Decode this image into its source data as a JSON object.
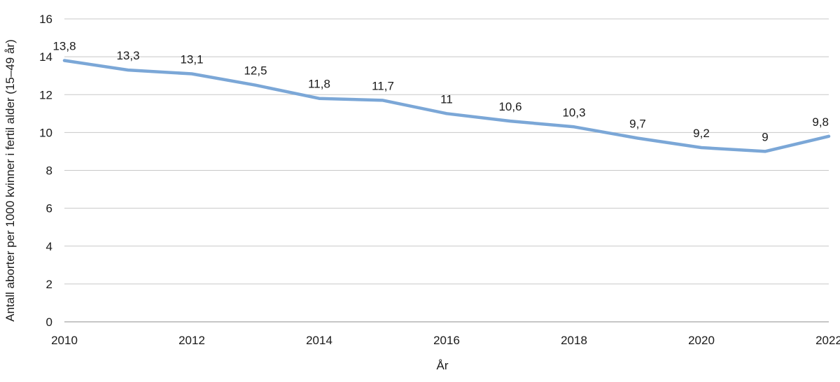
{
  "chart_data": {
    "type": "line",
    "xlabel": "År",
    "ylabel": "Antall aborter per 1000 kvinner i fertil alder (15–49 år)",
    "ylim": [
      0,
      16
    ],
    "yticks": [
      "0",
      "2",
      "4",
      "6",
      "8",
      "10",
      "12",
      "14",
      "16"
    ],
    "xlim": [
      2010,
      2022
    ],
    "xticks": [
      "2010",
      "2012",
      "2014",
      "2016",
      "2018",
      "2020",
      "2022"
    ],
    "grid": true,
    "line_color": "#7BA7D7",
    "series": [
      {
        "x": [
          2010,
          2011,
          2012,
          2013,
          2014,
          2015,
          2016,
          2017,
          2018,
          2019,
          2020,
          2021,
          2022
        ],
        "values": [
          13.8,
          13.3,
          13.1,
          12.5,
          11.8,
          11.7,
          11,
          10.6,
          10.3,
          9.7,
          9.2,
          9,
          9.8
        ],
        "labels": [
          "13,8",
          "13,3",
          "13,1",
          "12,5",
          "11,8",
          "11,7",
          "11",
          "10,6",
          "10,3",
          "9,7",
          "9,2",
          "9",
          "9,8"
        ]
      }
    ]
  }
}
